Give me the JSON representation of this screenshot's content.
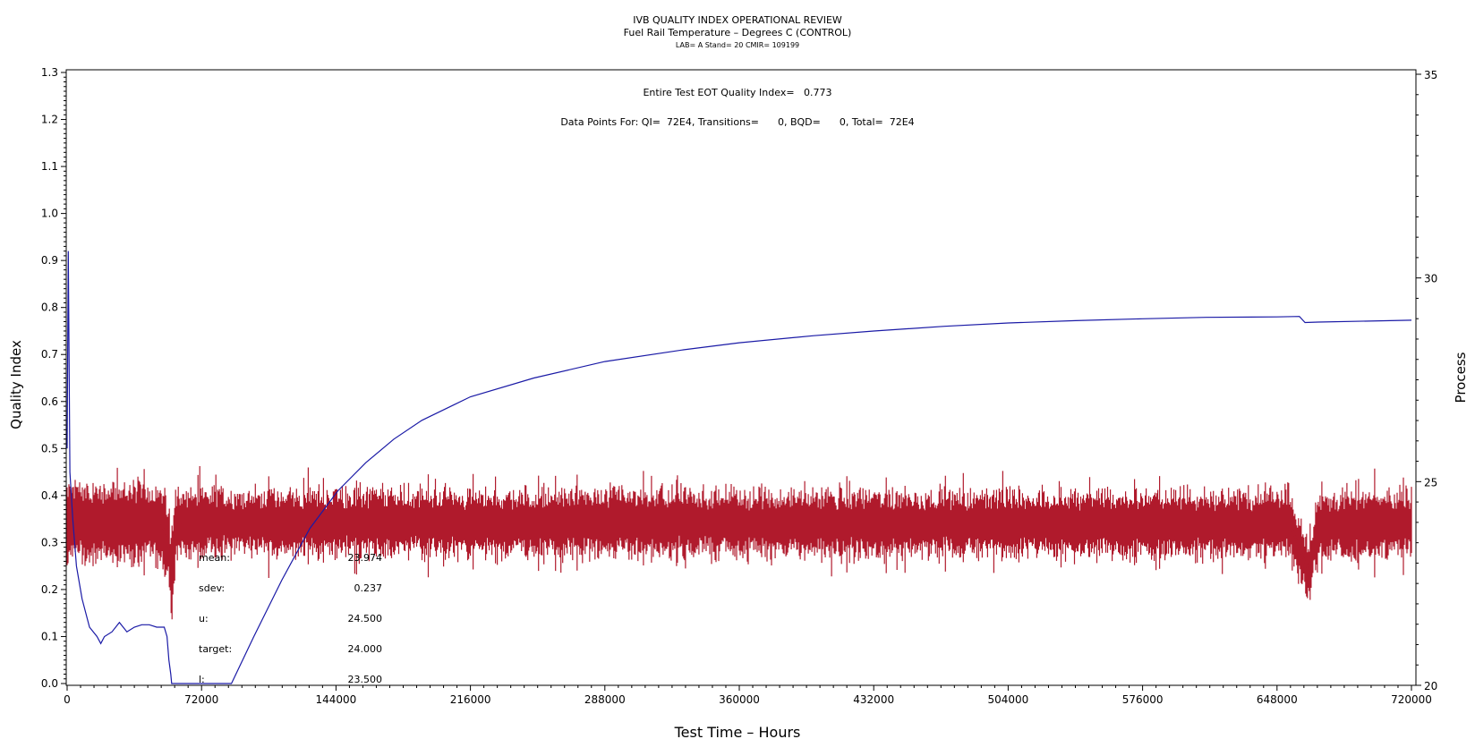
{
  "header": {
    "title": "IVB QUALITY INDEX OPERATIONAL REVIEW",
    "subtitle": "Fuel Rail Temperature – Degrees C (CONTROL)",
    "subtitle2": "LAB= A Stand= 20 CMIR= 109199"
  },
  "annotations": {
    "qi_line": "Entire Test EOT Quality Index=   0.773",
    "points_line": "Data Points For: QI=  72E4, Transitions=      0, BQD=      0, Total=  72E4"
  },
  "stats": [
    {
      "label": "mean:",
      "value": "23.974"
    },
    {
      "label": "sdev:",
      "value": "0.237"
    },
    {
      "label": "u:",
      "value": "24.500"
    },
    {
      "label": "target:",
      "value": "24.000"
    },
    {
      "label": "l:",
      "value": "23.500"
    }
  ],
  "chart_data": {
    "type": "line",
    "xlabel": "Test Time – Hours",
    "ylabel": "Quality Index",
    "y2label": "Process",
    "xlim": [
      0,
      720000
    ],
    "ylim": [
      0,
      1.3
    ],
    "y2lim": [
      20,
      35
    ],
    "x_ticks": [
      0,
      72000,
      144000,
      216000,
      288000,
      360000,
      432000,
      504000,
      576000,
      648000,
      720000
    ],
    "y_ticks": [
      "0.0",
      "0.1",
      "0.2",
      "0.3",
      "0.4",
      "0.5",
      "0.6",
      "0.7",
      "0.8",
      "0.9",
      "1.0",
      "1.1",
      "1.2",
      "1.3"
    ],
    "y2_ticks": [
      20,
      25,
      30,
      35
    ],
    "series": [
      {
        "axis": "left",
        "color": "#1a1aa6",
        "x": [
          0,
          600,
          1500,
          3000,
          5000,
          8000,
          12000,
          16000,
          18000,
          20000,
          24000,
          28000,
          32000,
          36000,
          40000,
          44000,
          48000,
          52000,
          53500,
          54500,
          55500,
          56000,
          88000,
          100000,
          115000,
          130000,
          145000,
          160000,
          175000,
          190000,
          216000,
          250000,
          288000,
          330000,
          360000,
          400000,
          432000,
          470000,
          504000,
          540000,
          576000,
          610000,
          648000,
          660000,
          663000,
          670000,
          720000
        ],
        "values": [
          0.5,
          0.92,
          0.45,
          0.35,
          0.25,
          0.18,
          0.12,
          0.1,
          0.085,
          0.1,
          0.11,
          0.13,
          0.11,
          0.12,
          0.125,
          0.125,
          0.12,
          0.12,
          0.1,
          0.05,
          0.02,
          0.0,
          0.0,
          0.1,
          0.22,
          0.33,
          0.41,
          0.47,
          0.52,
          0.56,
          0.61,
          0.65,
          0.685,
          0.71,
          0.725,
          0.74,
          0.75,
          0.76,
          0.767,
          0.772,
          0.776,
          0.779,
          0.78,
          0.781,
          0.768,
          0.769,
          0.773
        ]
      },
      {
        "axis": "right",
        "color": "#b01a2c",
        "x": [
          0,
          50000,
          54000,
          56000,
          58000,
          60000,
          655000,
          665000,
          670000,
          720000
        ],
        "values": [
          24.0,
          24.0,
          23.6,
          22.5,
          23.8,
          24.0,
          23.95,
          22.8,
          23.9,
          23.974
        ]
      }
    ]
  }
}
